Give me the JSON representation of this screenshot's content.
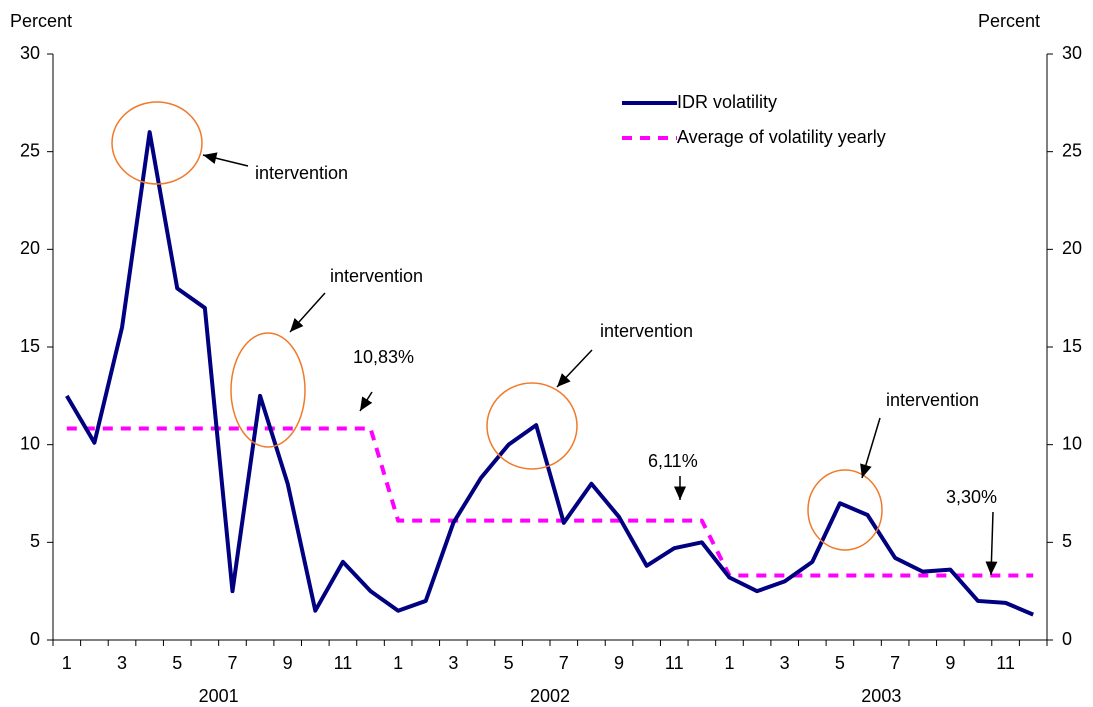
{
  "chart_data": {
    "type": "line",
    "y_label": "Percent",
    "y2_label": "Percent",
    "categories": [
      "1",
      null,
      "3",
      null,
      "5",
      null,
      "7",
      null,
      "9",
      null,
      "11",
      null,
      "1",
      null,
      "3",
      null,
      "5",
      null,
      "7",
      null,
      "9",
      null,
      "11",
      null,
      "1",
      null,
      "3",
      null,
      "5",
      null,
      "7",
      null,
      "9",
      null,
      "11",
      null
    ],
    "years": [
      "2001",
      "2002",
      "2003"
    ],
    "series": [
      {
        "name": "IDR volatility",
        "color": "#000080",
        "style": "solid",
        "values": [
          12.5,
          10.1,
          16,
          26,
          18,
          17,
          2.5,
          12.5,
          8,
          1.5,
          4,
          2.5,
          1.5,
          2,
          6,
          8.3,
          10,
          11,
          6,
          8,
          6.3,
          3.8,
          4.7,
          5,
          3.2,
          2.5,
          3,
          4,
          7,
          6.4,
          4.2,
          3.5,
          3.6,
          2,
          1.9,
          1.3
        ]
      },
      {
        "name": "Average of volatility yearly",
        "color": "#ff00ff",
        "style": "dashed",
        "values": [
          10.83,
          10.83,
          10.83,
          10.83,
          10.83,
          10.83,
          10.83,
          10.83,
          10.83,
          10.83,
          10.83,
          10.83,
          6.11,
          6.11,
          6.11,
          6.11,
          6.11,
          6.11,
          6.11,
          6.11,
          6.11,
          6.11,
          6.11,
          6.11,
          3.3,
          3.3,
          3.3,
          3.3,
          3.3,
          3.3,
          3.3,
          3.3,
          3.3,
          3.3,
          3.3,
          3.3
        ]
      }
    ],
    "ylim": [
      0,
      30
    ],
    "yticks": [
      0,
      5,
      10,
      15,
      20,
      25,
      30
    ],
    "y2lim": [
      0,
      30
    ],
    "y2ticks": [
      0,
      5,
      10,
      15,
      20,
      25,
      30
    ],
    "legend": "upper center",
    "annotations": [
      "intervention",
      "intervention",
      "10,83%",
      "intervention",
      "6,11%",
      "intervention",
      "3,30%"
    ]
  }
}
